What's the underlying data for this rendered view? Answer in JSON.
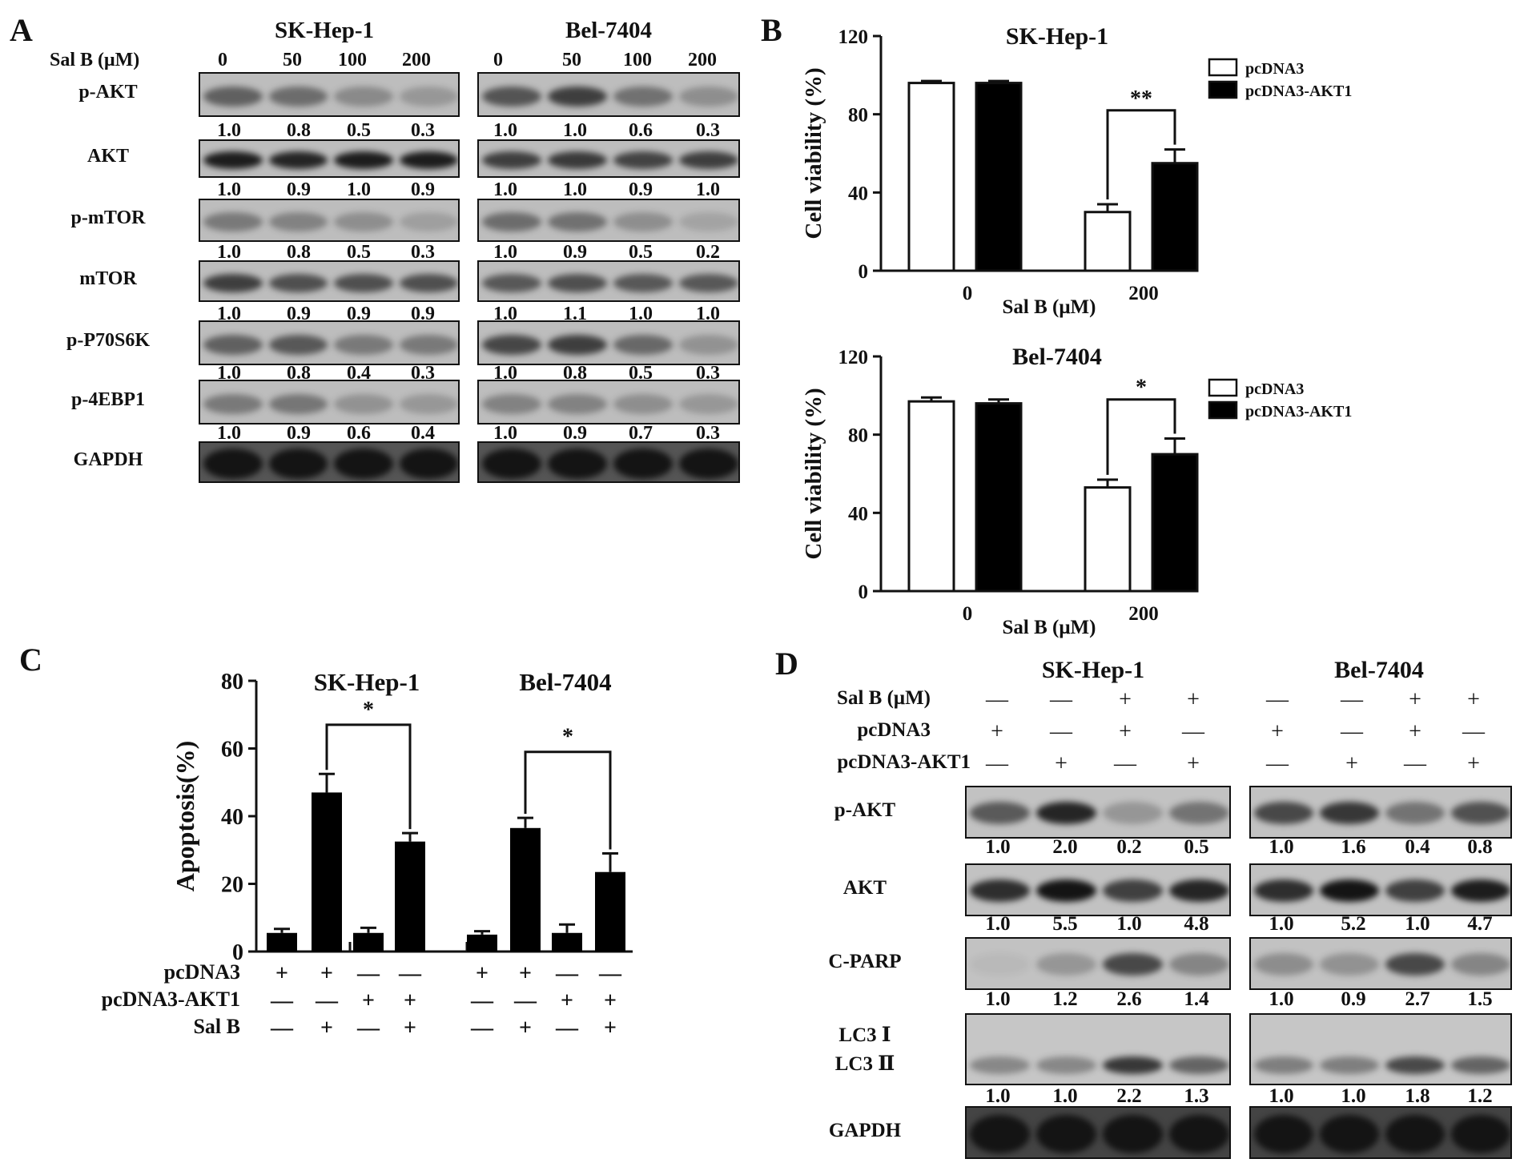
{
  "panel_labels": [
    "A",
    "B",
    "C",
    "D"
  ],
  "panelA": {
    "cell_lines": [
      "SK-Hep-1",
      "Bel-7404"
    ],
    "treatment_label": "Sal B (μM)",
    "doses": [
      "0",
      "50",
      "100",
      "200"
    ],
    "rows": [
      {
        "label": "p-AKT",
        "values": [
          [
            "1.0",
            "0.8",
            "0.5",
            "0.3"
          ],
          [
            "1.0",
            "1.0",
            "0.6",
            "0.3"
          ]
        ],
        "intensity": [
          [
            0.55,
            0.48,
            0.3,
            0.22
          ],
          [
            0.62,
            0.75,
            0.45,
            0.28
          ]
        ]
      },
      {
        "label": "AKT",
        "values": [
          [
            "1.0",
            "0.9",
            "1.0",
            "0.9"
          ],
          [
            "1.0",
            "1.0",
            "0.9",
            "1.0"
          ]
        ],
        "intensity": [
          [
            0.95,
            0.9,
            0.95,
            0.95
          ],
          [
            0.75,
            0.78,
            0.72,
            0.75
          ]
        ]
      },
      {
        "label": "p-mTOR",
        "values": [
          [
            "1.0",
            "0.8",
            "0.5",
            "0.3"
          ],
          [
            "1.0",
            "0.9",
            "0.5",
            "0.2"
          ]
        ],
        "intensity": [
          [
            0.4,
            0.35,
            0.28,
            0.18
          ],
          [
            0.48,
            0.45,
            0.28,
            0.15
          ]
        ]
      },
      {
        "label": "mTOR",
        "values": [
          [
            "1.0",
            "0.9",
            "0.9",
            "0.9"
          ],
          [
            "1.0",
            "1.1",
            "1.0",
            "1.0"
          ]
        ],
        "intensity": [
          [
            0.75,
            0.65,
            0.65,
            0.65
          ],
          [
            0.6,
            0.65,
            0.6,
            0.6
          ]
        ]
      },
      {
        "label": "p-P70S6K",
        "values": [
          [
            "1.0",
            "0.8",
            "0.4",
            "0.3"
          ],
          [
            "1.0",
            "0.8",
            "0.5",
            "0.3"
          ]
        ],
        "intensity": [
          [
            0.55,
            0.6,
            0.4,
            0.4
          ],
          [
            0.7,
            0.75,
            0.5,
            0.25
          ]
        ]
      },
      {
        "label": "p-4EBP1",
        "values": [
          [
            "1.0",
            "0.9",
            "0.6",
            "0.4"
          ],
          [
            "1.0",
            "0.9",
            "0.7",
            "0.3"
          ]
        ],
        "intensity": [
          [
            0.4,
            0.42,
            0.25,
            0.22
          ],
          [
            0.35,
            0.35,
            0.28,
            0.22
          ]
        ]
      },
      {
        "label": "GAPDH",
        "values": null,
        "intensity": [
          [
            1,
            1,
            1,
            1
          ],
          [
            1,
            1,
            1,
            1
          ]
        ]
      }
    ]
  },
  "panelB": {
    "charts": [
      {
        "title": "SK-Hep-1",
        "ylabel": "Cell viability (%)",
        "xlabel": "Sal B (μM)",
        "yticks": [
          "0",
          "40",
          "80",
          "120"
        ],
        "significance": "**"
      },
      {
        "title": "Bel-7404",
        "ylabel": "Cell viability (%)",
        "xlabel": "Sal B (μM)",
        "yticks": [
          "0",
          "40",
          "80",
          "120"
        ],
        "significance": "*"
      }
    ]
  },
  "panelC": {
    "ylabel": "Apoptosis(%)",
    "yticks": [
      "0",
      "20",
      "40",
      "60",
      "80"
    ],
    "group_titles": [
      "SK-Hep-1",
      "Bel-7404"
    ],
    "row_labels": [
      "pcDNA3",
      "pcDNA3-AKT1",
      "Sal B"
    ],
    "signs": [
      [
        "+",
        "+",
        "—",
        "—",
        "+",
        "+",
        "—",
        "—"
      ],
      [
        "—",
        "—",
        "+",
        "+",
        "—",
        "—",
        "+",
        "+"
      ],
      [
        "—",
        "+",
        "—",
        "+",
        "—",
        "+",
        "—",
        "+"
      ]
    ],
    "significance": [
      "*",
      "*"
    ]
  },
  "panelD": {
    "cell_lines": [
      "SK-Hep-1",
      "Bel-7404"
    ],
    "row_labels": [
      "Sal B (μM)",
      "pcDNA3",
      "pcDNA3-AKT1"
    ],
    "signs": [
      [
        "—",
        "—",
        "+",
        "+"
      ],
      [
        "+",
        "—",
        "+",
        "—"
      ],
      [
        "—",
        "+",
        "—",
        "+"
      ]
    ],
    "blots": [
      {
        "label": "p-AKT",
        "values": [
          [
            "1.0",
            "2.0",
            "0.2",
            "0.5"
          ],
          [
            "1.0",
            "1.6",
            "0.4",
            "0.8"
          ]
        ],
        "intensity": [
          [
            0.6,
            0.9,
            0.25,
            0.45
          ],
          [
            0.7,
            0.8,
            0.45,
            0.65
          ]
        ]
      },
      {
        "label": "AKT",
        "values": [
          [
            "1.0",
            "5.5",
            "1.0",
            "4.8"
          ],
          [
            "1.0",
            "5.2",
            "1.0",
            "4.7"
          ]
        ],
        "intensity": [
          [
            0.85,
            1.0,
            0.75,
            0.9
          ],
          [
            0.85,
            1.0,
            0.75,
            0.95
          ]
        ]
      },
      {
        "label": "C-PARP",
        "values": [
          [
            "1.0",
            "1.2",
            "2.6",
            "1.4"
          ],
          [
            "1.0",
            "0.9",
            "2.7",
            "1.5"
          ]
        ],
        "intensity": [
          [
            0.05,
            0.25,
            0.7,
            0.35
          ],
          [
            0.3,
            0.28,
            0.7,
            0.35
          ]
        ]
      },
      {
        "label": "LC3 Ⅰ|LC3 Ⅱ",
        "values": [
          [
            "1.0",
            "1.0",
            "2.2",
            "1.3"
          ],
          [
            "1.0",
            "1.0",
            "1.8",
            "1.2"
          ]
        ],
        "intensity": [
          [
            0.35,
            0.35,
            0.8,
            0.55
          ],
          [
            0.4,
            0.4,
            0.7,
            0.55
          ]
        ]
      },
      {
        "label": "GAPDH",
        "values": null,
        "intensity": [
          [
            1,
            1,
            1,
            1
          ],
          [
            1,
            1,
            1,
            1
          ]
        ]
      }
    ]
  },
  "chart_data": [
    {
      "type": "bar",
      "title": "SK-Hep-1",
      "xlabel": "Sal B (μM)",
      "ylabel": "Cell viability (%)",
      "categories": [
        "0",
        "200"
      ],
      "ylim": [
        0,
        120
      ],
      "series": [
        {
          "name": "pcDNA3",
          "values": [
            96,
            30
          ],
          "errors": [
            1,
            4
          ],
          "color": "#ffffff"
        },
        {
          "name": "pcDNA3-AKT1",
          "values": [
            96,
            55
          ],
          "errors": [
            1,
            7
          ],
          "color": "#000000"
        }
      ],
      "annotations": [
        "**"
      ],
      "legend": "top-right"
    },
    {
      "type": "bar",
      "title": "Bel-7404",
      "xlabel": "Sal B (μM)",
      "ylabel": "Cell viability (%)",
      "categories": [
        "0",
        "200"
      ],
      "ylim": [
        0,
        120
      ],
      "series": [
        {
          "name": "pcDNA3",
          "values": [
            97,
            53
          ],
          "errors": [
            2,
            4
          ],
          "color": "#ffffff"
        },
        {
          "name": "pcDNA3-AKT1",
          "values": [
            96,
            70
          ],
          "errors": [
            2,
            8
          ],
          "color": "#000000"
        }
      ],
      "annotations": [
        "*"
      ],
      "legend": "top-right"
    },
    {
      "type": "bar",
      "ylabel": "Apoptosis(%)",
      "ylim": [
        0,
        80
      ],
      "groups": [
        "SK-Hep-1",
        "Bel-7404"
      ],
      "values": [
        5.5,
        47,
        5.5,
        32.5,
        5,
        36.5,
        5.5,
        23.5
      ],
      "errors": [
        1.2,
        5.5,
        1.5,
        2.5,
        1,
        3,
        2.5,
        5.5
      ],
      "color": "#000000",
      "annotations": [
        "*",
        "*"
      ]
    }
  ]
}
